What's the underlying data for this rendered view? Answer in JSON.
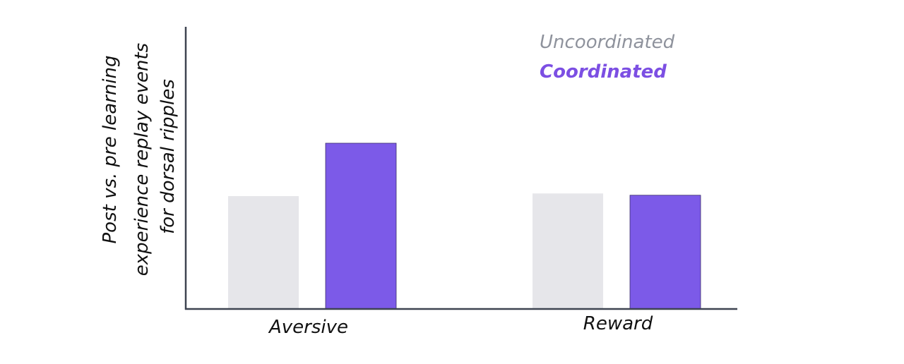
{
  "chart_data": {
    "type": "bar",
    "categories": [
      "Aversive",
      "Reward"
    ],
    "series": [
      {
        "name": "Uncoordinated",
        "values": [
          0.64,
          0.655
        ]
      },
      {
        "name": "Coordinated",
        "values": [
          0.94,
          0.645
        ]
      }
    ],
    "title": "",
    "xlabel": "",
    "ylabel_lines": [
      "Post vs. pre learning",
      "experience replay events",
      "for dorsal ripples"
    ],
    "ylim": [
      0,
      1.6
    ],
    "grid": false,
    "y_ticks_shown": false,
    "legend_position": "top-right",
    "colors": {
      "Uncoordinated": "#e6e6ea",
      "Coordinated": "#7c5ae8",
      "legend_uncoordinated_text": "#8e929c",
      "legend_coordinated_text": "#7c4fe3",
      "axis": "#3e4451",
      "text": "#111111"
    }
  }
}
